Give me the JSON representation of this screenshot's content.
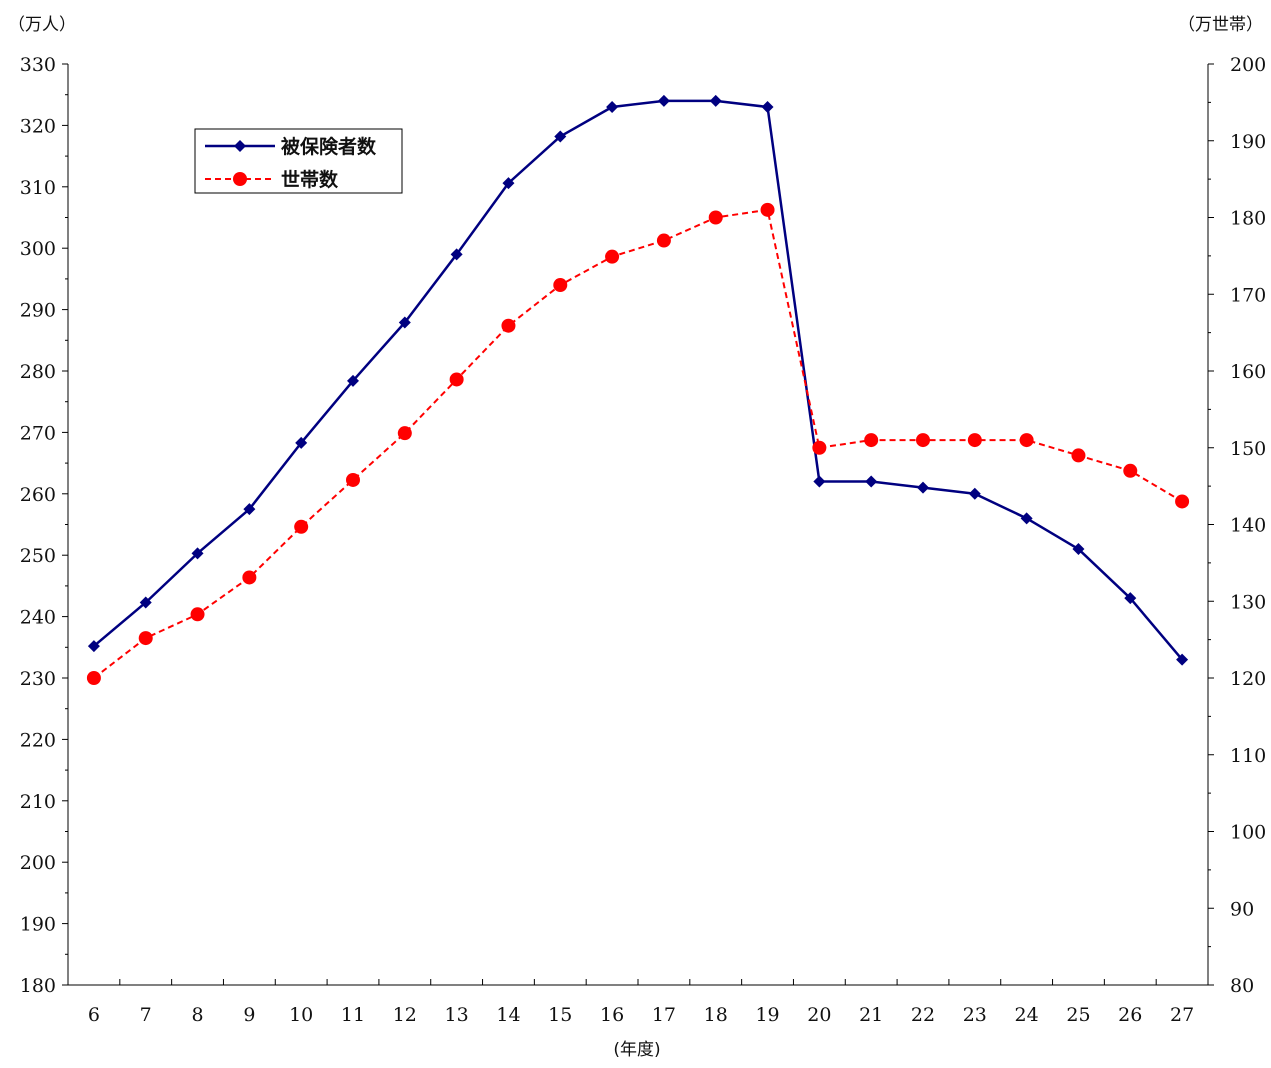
{
  "chart_data": {
    "type": "line",
    "xlabel": "(年度)",
    "ylabel_left": "（万人）",
    "ylabel_right": "（万世帯）",
    "categories": [
      "6",
      "7",
      "8",
      "9",
      "10",
      "11",
      "12",
      "13",
      "14",
      "15",
      "16",
      "17",
      "18",
      "19",
      "20",
      "21",
      "22",
      "23",
      "24",
      "25",
      "26",
      "27"
    ],
    "ylim_left": [
      180,
      330
    ],
    "ylim_right": [
      80,
      200
    ],
    "yticks_left": [
      180,
      190,
      200,
      210,
      220,
      230,
      240,
      250,
      260,
      270,
      280,
      290,
      300,
      310,
      320,
      330
    ],
    "yticks_right": [
      80,
      90,
      100,
      110,
      120,
      130,
      140,
      150,
      160,
      170,
      180,
      190,
      200
    ],
    "grid": false,
    "legend_position": "top-left",
    "series": [
      {
        "name": "被保険者数",
        "axis": "left",
        "color": "#000080",
        "marker": "diamond",
        "line_style": "solid",
        "values": [
          235.2,
          242.3,
          250.3,
          257.5,
          268.3,
          278.4,
          287.9,
          299.0,
          310.6,
          318.2,
          323.0,
          324.0,
          324.0,
          323.0,
          262.0,
          262.0,
          261.0,
          260.0,
          256.0,
          251.0,
          243.0,
          233.0
        ]
      },
      {
        "name": "世帯数",
        "axis": "right",
        "color": "#ff0000",
        "marker": "circle",
        "line_style": "dashed",
        "values": [
          120.0,
          125.2,
          128.3,
          133.1,
          139.7,
          145.8,
          151.9,
          158.9,
          165.9,
          171.2,
          174.9,
          177.0,
          180.0,
          181.0,
          150.0,
          151.0,
          151.0,
          151.0,
          151.0,
          149.0,
          147.0,
          143.0
        ]
      }
    ]
  }
}
